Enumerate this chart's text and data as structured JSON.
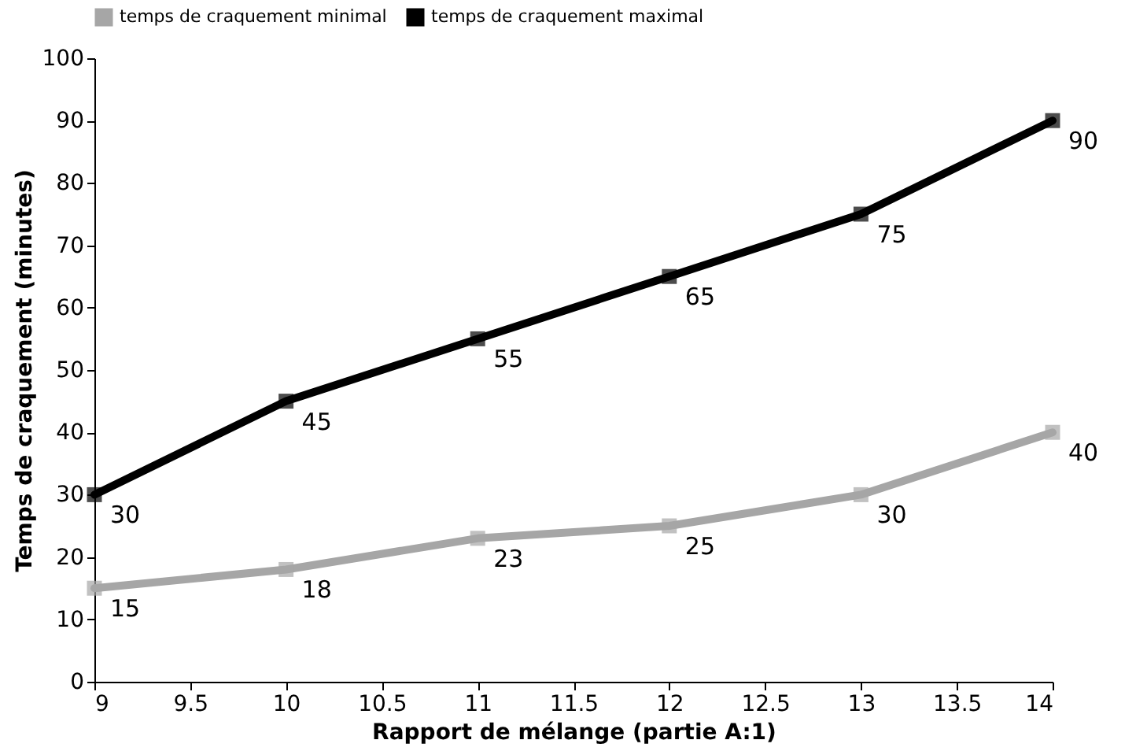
{
  "chart_data": {
    "type": "line",
    "xlabel": "Rapport de mélange (partie A:1)",
    "ylabel": "Temps de craquement (minutes)",
    "x": [
      9,
      10,
      11,
      12,
      13,
      14
    ],
    "series": [
      {
        "name": "temps de craquement minimal",
        "color": "#a6a6a6",
        "values": [
          15,
          18,
          23,
          25,
          30,
          40
        ]
      },
      {
        "name": "temps de craquement maximal",
        "color": "#000000",
        "values": [
          30,
          45,
          55,
          65,
          75,
          90
        ]
      }
    ],
    "xlim": [
      9,
      14
    ],
    "xticks": [
      9,
      9.5,
      10,
      10.5,
      11,
      11.5,
      12,
      12.5,
      13,
      13.5,
      14
    ],
    "ylim": [
      0,
      100
    ],
    "yticks": [
      0,
      10,
      20,
      30,
      40,
      50,
      60,
      70,
      80,
      90,
      100
    ],
    "data_labels": true,
    "legend": "top",
    "marker": "square",
    "line_style": "solid",
    "grid": false
  }
}
